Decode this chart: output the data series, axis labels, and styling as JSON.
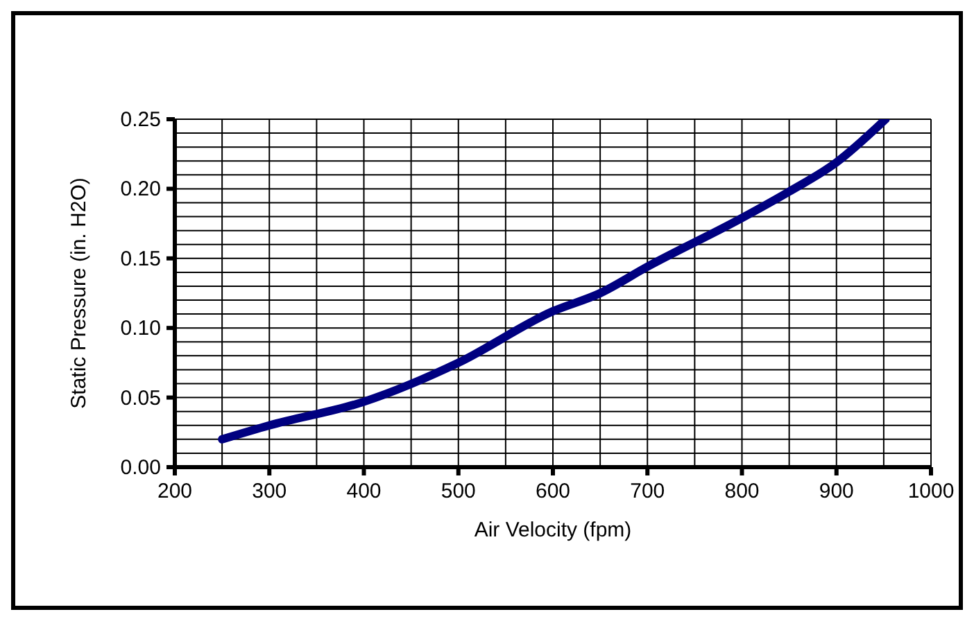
{
  "chart_data": {
    "type": "line",
    "xlabel": "Air Velocity (fpm)",
    "ylabel": "Static Pressure (in. H2O)",
    "x": [
      250,
      300,
      400,
      500,
      600,
      650,
      700,
      800,
      850,
      900,
      952
    ],
    "series": [
      {
        "color": "#000080",
        "values": [
          0.02,
          0.03,
          0.047,
          0.075,
          0.112,
          0.125,
          0.144,
          0.179,
          0.198,
          0.219,
          0.25
        ]
      }
    ],
    "xlim": [
      200,
      1000
    ],
    "xticks": [
      200,
      {
        "value": 250,
        "label": null
      },
      300,
      {
        "value": 350,
        "label": null
      },
      400,
      {
        "value": 450,
        "label": null
      },
      500,
      {
        "value": 550,
        "label": null
      },
      600,
      {
        "value": 650,
        "label": null
      },
      700,
      {
        "value": 750,
        "label": null
      },
      800,
      {
        "value": 850,
        "label": null
      },
      900,
      {
        "value": 950,
        "label": null
      },
      1000
    ],
    "ylim": [
      0,
      0.25
    ],
    "yticks": [
      {
        "value": 0,
        "label": "0.00"
      },
      {
        "value": 0.01,
        "label": null
      },
      {
        "value": 0.02,
        "label": null
      },
      {
        "value": 0.03,
        "label": null
      },
      {
        "value": 0.04,
        "label": null
      },
      {
        "value": 0.05,
        "label": "0.05"
      },
      {
        "value": 0.06,
        "label": null
      },
      {
        "value": 0.07,
        "label": null
      },
      {
        "value": 0.08,
        "label": null
      },
      {
        "value": 0.09,
        "label": null
      },
      {
        "value": 0.1,
        "label": "0.10"
      },
      {
        "value": 0.11,
        "label": null
      },
      {
        "value": 0.12,
        "label": null
      },
      {
        "value": 0.13,
        "label": null
      },
      {
        "value": 0.14,
        "label": null
      },
      {
        "value": 0.15,
        "label": "0.15"
      },
      {
        "value": 0.16,
        "label": null
      },
      {
        "value": 0.17,
        "label": null
      },
      {
        "value": 0.18,
        "label": null
      },
      {
        "value": 0.19,
        "label": null
      },
      {
        "value": 0.2,
        "label": "0.20"
      },
      {
        "value": 0.21,
        "label": null
      },
      {
        "value": 0.22,
        "label": null
      },
      {
        "value": 0.23,
        "label": null
      },
      {
        "value": 0.24,
        "label": null
      },
      {
        "value": 0.25,
        "label": "0.25"
      }
    ],
    "grid": true,
    "marker": "none",
    "line_style": "solid",
    "legend": false
  }
}
